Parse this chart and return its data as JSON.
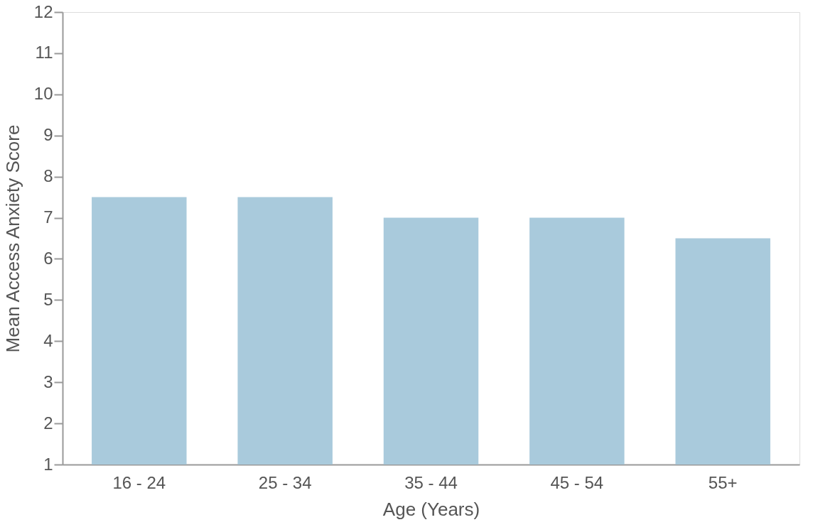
{
  "chart_data": {
    "type": "bar",
    "xlabel": "Age (Years)",
    "ylabel": "Mean Access Anxiety Score",
    "categories": [
      "16 - 24",
      "25 - 34",
      "35 - 44",
      "45 - 54",
      "55+"
    ],
    "values": [
      7.5,
      7.5,
      7,
      7,
      6.5
    ],
    "color": "#a9cadc",
    "ylim": [
      1,
      12
    ],
    "yticks": [
      1,
      2,
      3,
      4,
      5,
      6,
      7,
      8,
      9,
      10,
      11,
      12
    ],
    "grid": false
  }
}
